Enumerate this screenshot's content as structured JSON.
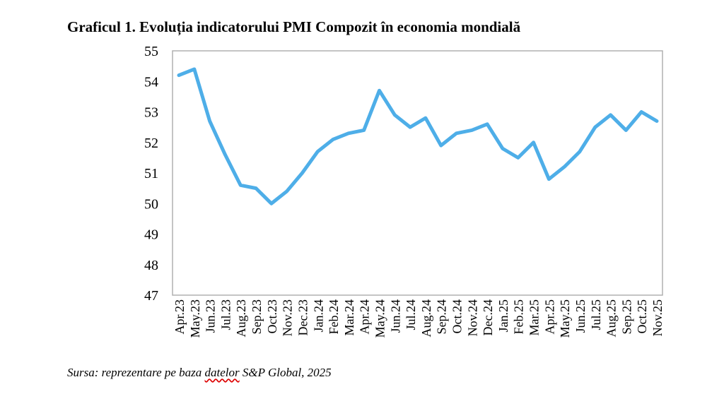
{
  "chart_data": {
    "type": "line",
    "title": "Graficul 1. Evoluția indicatorului PMI Compozit în economia mondială",
    "xlabel": "",
    "ylabel": "",
    "ylim": [
      47,
      55
    ],
    "yticks": [
      "47",
      "48",
      "49",
      "50",
      "51",
      "52",
      "53",
      "54",
      "55"
    ],
    "grid": false,
    "legend": "none",
    "line_color": "#4EAEE8",
    "categories": [
      "Apr.23",
      "May.23",
      "Jun.23",
      "Jul.23",
      "Aug.23",
      "Sep.23",
      "Oct.23",
      "Nov.23",
      "Dec.23",
      "Jan.24",
      "Feb.24",
      "Mar.24",
      "Apr.24",
      "May.24",
      "Jun.24",
      "Jul.24",
      "Aug.24",
      "Sep.24",
      "Oct.24",
      "Nov.24",
      "Dec.24",
      "Jan.25",
      "Feb.25",
      "Mar.25",
      "Apr.25",
      "May.25",
      "Jun.25",
      "Jul.25",
      "Aug.25",
      "Sep.25",
      "Oct.25",
      "Nov.25"
    ],
    "values": [
      54.2,
      54.4,
      52.7,
      51.6,
      50.6,
      50.5,
      50.0,
      50.4,
      51.0,
      51.7,
      52.1,
      52.3,
      52.4,
      53.7,
      52.9,
      52.5,
      52.8,
      51.9,
      52.3,
      52.4,
      52.6,
      51.8,
      51.5,
      52.0,
      50.8,
      51.2,
      51.7,
      52.5,
      52.9,
      52.4,
      53.0,
      52.7
    ]
  },
  "source": {
    "prefix": "Sursa: reprezentare pe baza ",
    "underlined": "datelor",
    "suffix": " S&P Global, 2025"
  }
}
